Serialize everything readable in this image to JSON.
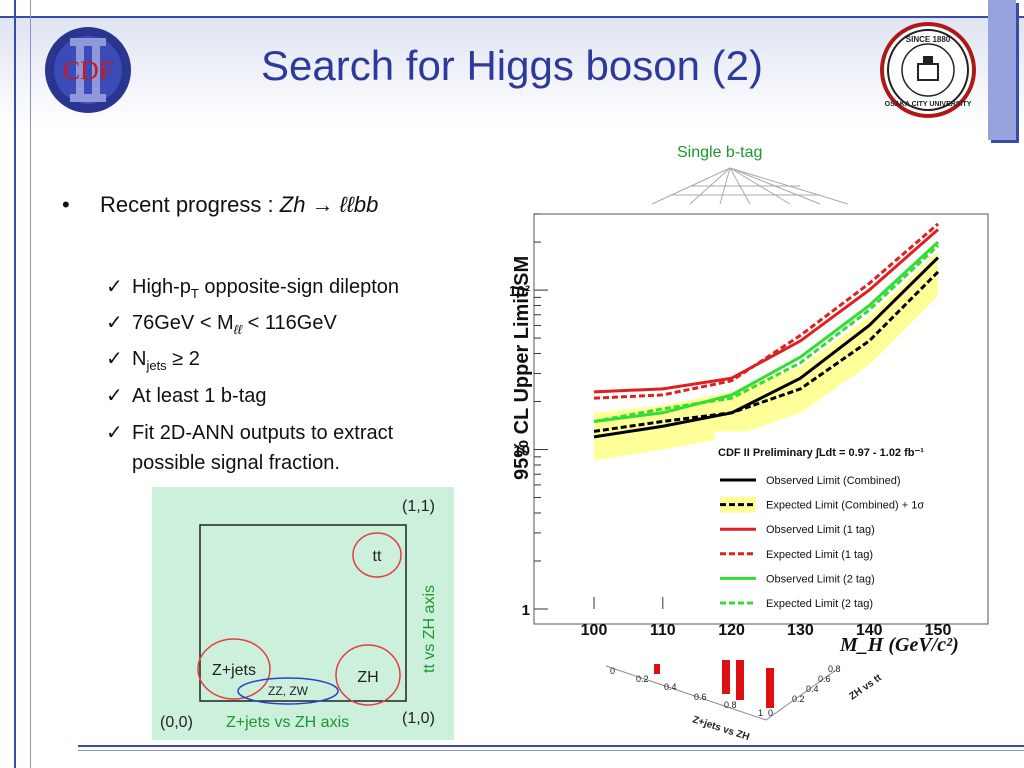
{
  "title": "Search for Higgs boson (2)",
  "logos": {
    "left": "CDF",
    "right_top": "SINCE 1880",
    "right_ring": "OSAKA CITY UNIVERSITY"
  },
  "bullet": {
    "prefix": "Recent progress : ",
    "formula": "Zh → ℓℓbb"
  },
  "items": [
    {
      "text": "High-p",
      "sub": "T",
      "rest": " opposite-sign dilepton"
    },
    {
      "text": "76GeV < M",
      "sub": "ℓℓ",
      "rest": " < 116GeV"
    },
    {
      "text": "N",
      "sub": "jets",
      "rest": " ≥ 2"
    },
    {
      "text": "At least 1 b-tag",
      "sub": "",
      "rest": ""
    },
    {
      "text": "Fit 2D-ANN outputs to extract",
      "sub": "",
      "rest": ""
    },
    {
      "text": "possible signal fraction.",
      "sub": "",
      "rest": ""
    }
  ],
  "single_btag": "Single b-tag",
  "diagram": {
    "corner_11": "(1,1)",
    "corner_00": "(0,0)",
    "corner_10": "(1,0)",
    "xaxis": "Z+jets vs ZH axis",
    "yaxis": "tt vs ZH axis",
    "labels": {
      "tt": "tt",
      "zjets": "Z+jets",
      "zh": "ZH",
      "zzzw": "ZZ, ZW"
    }
  },
  "lego": {
    "xaxis": "Z+jets vs ZH",
    "yaxis": "ZH vs tt",
    "ticks": [
      "0",
      "0.2",
      "0.4",
      "0.6",
      "0.8",
      "1",
      "0",
      "0.2",
      "0.4",
      "0.6",
      "0.8"
    ]
  },
  "chart_data": {
    "type": "line",
    "ylabel": "95% CL Upper Limit/SM",
    "xlabel": "M_H (GeV/c²)",
    "x": [
      100,
      110,
      120,
      130,
      140,
      150
    ],
    "x_ticks": [
      "100",
      "110",
      "120",
      "130",
      "140",
      "150"
    ],
    "y_ticks": [
      "1",
      "10",
      "10²"
    ],
    "ylim": [
      1,
      300
    ],
    "yscale": "log",
    "xlim": [
      100,
      150
    ],
    "annotation": "CDF II Preliminary ∫Ldt = 0.97 - 1.02 fb⁻¹",
    "legend_position": "bottom-right",
    "series": [
      {
        "name": "Observed Limit (Combined)",
        "color": "#000000",
        "dash": false,
        "values": [
          12,
          14,
          17,
          28,
          60,
          160
        ]
      },
      {
        "name": "Expected Limit (Combined) + 1σ",
        "color": "#000000",
        "dash": true,
        "values": [
          13,
          15,
          17,
          24,
          48,
          130
        ]
      },
      {
        "name": "Observed Limit (1 tag)",
        "color": "#e02020",
        "dash": false,
        "values": [
          23,
          24,
          28,
          48,
          100,
          240
        ]
      },
      {
        "name": "Expected Limit (1 tag)",
        "color": "#e02020",
        "dash": true,
        "values": [
          21,
          22,
          27,
          52,
          110,
          260
        ]
      },
      {
        "name": "Observed Limit (2 tag)",
        "color": "#33dd33",
        "dash": false,
        "values": [
          15,
          17,
          22,
          38,
          80,
          200
        ]
      },
      {
        "name": "Expected Limit (2 tag)",
        "color": "#33dd33",
        "dash": true,
        "values": [
          15,
          18,
          21,
          35,
          75,
          190
        ]
      }
    ],
    "band": {
      "name": "± 1σ",
      "color": "#ffff99",
      "low": [
        8.5,
        10,
        12,
        17,
        34,
        92
      ],
      "high": [
        17,
        19,
        23,
        33,
        68,
        175
      ]
    }
  }
}
